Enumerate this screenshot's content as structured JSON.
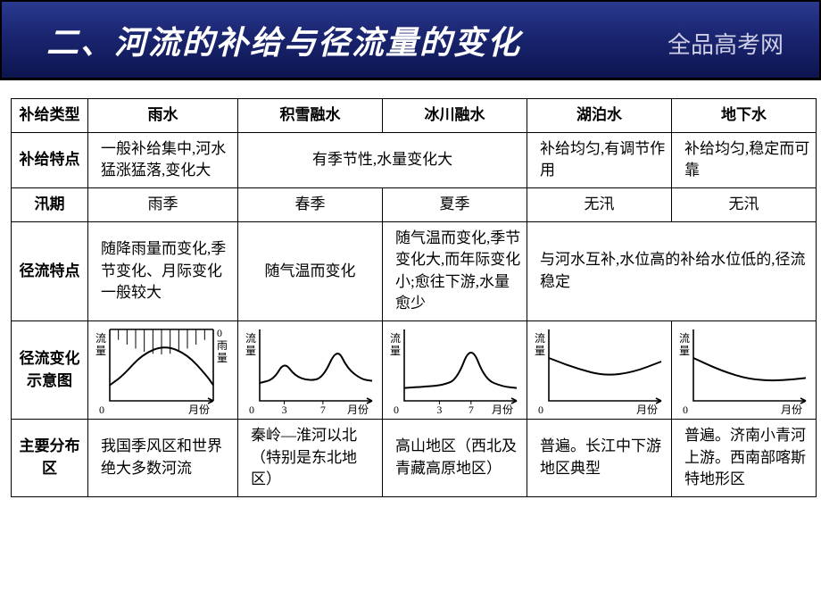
{
  "header": {
    "title": "二、河流的补给与径流量的变化",
    "subtitle": "全品高考网"
  },
  "table": {
    "row_headers": [
      "补给类型",
      "补给特点",
      "汛期",
      "径流特点",
      "径流变化示意图",
      "主要分布区"
    ],
    "columns": [
      "雨水",
      "积雪融水",
      "冰川融水",
      "湖泊水",
      "地下水"
    ],
    "features": {
      "rain": "一般补给集中,河水猛涨猛落,变化大",
      "snow_ice": "有季节性,水量变化大",
      "lake": "补给均匀,有调节作用",
      "ground": "补给均匀,稳定而可靠"
    },
    "flood": {
      "rain": "雨季",
      "snow": "春季",
      "ice": "夏季",
      "lake": "无汛",
      "ground": "无汛"
    },
    "runoff": {
      "rain": "随降雨量而变化,季节变化、月际变化一般较大",
      "snow": "随气温而变化",
      "ice": "随气温而变化,季节变化大,而年际变化小;愈往下游,水量愈少",
      "lake_ground": "与河水互补,水位高的补给水位低的,径流稳定"
    },
    "distribution": {
      "rain": "我国季风区和世界绝大多数河流",
      "snow": "秦岭―淮河以北（特别是东北地区）",
      "ice": "高山地区（西北及青藏高原地区）",
      "lake": "普遍。长江中下游地区典型",
      "ground": "普遍。济南小青河上游。西南部喀斯特地形区"
    },
    "charts": {
      "y_label": "流量",
      "x_label": "月份",
      "rain_extra_y": "雨量",
      "rain": {
        "type": "line",
        "curve": [
          [
            0,
            22
          ],
          [
            20,
            35
          ],
          [
            50,
            65
          ],
          [
            85,
            78
          ],
          [
            120,
            65
          ],
          [
            150,
            35
          ],
          [
            160,
            22
          ]
        ],
        "xlim": [
          0,
          160
        ],
        "ylim": [
          0,
          100
        ],
        "rain_bars": true
      },
      "snow": {
        "type": "line",
        "curve": [
          [
            0,
            25
          ],
          [
            20,
            30
          ],
          [
            35,
            55
          ],
          [
            50,
            35
          ],
          [
            70,
            28
          ],
          [
            90,
            32
          ],
          [
            110,
            75
          ],
          [
            125,
            45
          ],
          [
            145,
            30
          ],
          [
            160,
            28
          ]
        ],
        "xlim": [
          0,
          160
        ],
        "ylim": [
          0,
          100
        ],
        "ticks_x": [
          35,
          90
        ],
        "tick_labels": [
          "3",
          "7"
        ]
      },
      "ice": {
        "type": "line",
        "curve": [
          [
            0,
            18
          ],
          [
            30,
            20
          ],
          [
            55,
            22
          ],
          [
            75,
            30
          ],
          [
            95,
            80
          ],
          [
            115,
            30
          ],
          [
            140,
            20
          ],
          [
            160,
            18
          ]
        ],
        "xlim": [
          0,
          160
        ],
        "ylim": [
          0,
          100
        ],
        "ticks_x": [
          50,
          95
        ],
        "tick_labels": [
          "3",
          "7"
        ]
      },
      "lake": {
        "type": "line",
        "curve": [
          [
            0,
            60
          ],
          [
            40,
            45
          ],
          [
            80,
            35
          ],
          [
            120,
            40
          ],
          [
            160,
            55
          ]
        ],
        "xlim": [
          0,
          160
        ],
        "ylim": [
          0,
          100
        ]
      },
      "ground": {
        "type": "line",
        "curve": [
          [
            0,
            60
          ],
          [
            40,
            42
          ],
          [
            80,
            30
          ],
          [
            120,
            28
          ],
          [
            160,
            32
          ]
        ],
        "xlim": [
          0,
          160
        ],
        "ylim": [
          0,
          100
        ]
      }
    }
  },
  "style": {
    "header_gradient": [
      "#2a3a8f",
      "#1a2570",
      "#0d1550"
    ],
    "title_color": "#ffffff",
    "subtitle_color": "#cfcfe8",
    "border_color": "#000000",
    "background": "#ffffff",
    "title_fontsize": 36,
    "cell_fontsize": 17
  }
}
